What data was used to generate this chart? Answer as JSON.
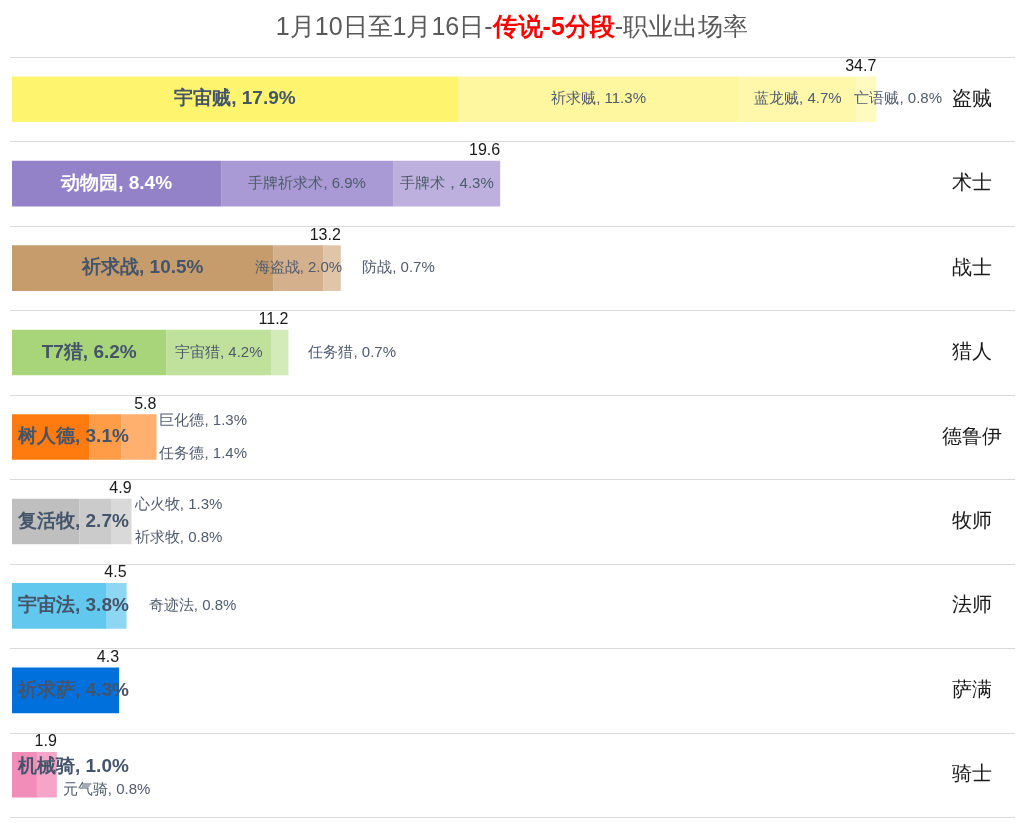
{
  "chart_data": {
    "type": "bar",
    "title": "1月10日至1月16日-传说-5分段-职业出场率",
    "orientation": "horizontal",
    "stacked": true,
    "grid": "y",
    "tick_labels": "y",
    "categories": [
      "盗贼",
      "术士",
      "战士",
      "猎人",
      "德鲁伊",
      "牧师",
      "法师",
      "萨满",
      "骑士"
    ],
    "totals": [
      "34.7",
      "19.6",
      "13.2",
      "11.2",
      "5.8",
      "4.9",
      "4.5",
      "4.3",
      "1.9"
    ],
    "series": [
      {
        "values": [
          17.9,
          8.4,
          10.5,
          6.2,
          3.1,
          2.7,
          3.8,
          4.3,
          1.0
        ],
        "colors": [
          "#fff46e",
          "#9382c8",
          "#c69c6d",
          "#a8d57a",
          "#ff7b0f",
          "#bfbfbf",
          "#63c8ee",
          "#0070dd",
          "#f28cb8"
        ],
        "value_labels": [
          "宇宙贼, 17.9%",
          "动物园, 8.4%",
          "祈求战, 10.5%",
          "T7猎, 6.2%",
          "树人德, 3.1%",
          "复活牧, 2.7%",
          "宇宙法, 3.8%",
          "祈求萨, 4.3%",
          "机械骑, 1.0%"
        ]
      },
      {
        "values": [
          11.3,
          6.9,
          2.0,
          4.2,
          1.3,
          1.3,
          0.8,
          null,
          0.8
        ],
        "colors": [
          "#fff7a0",
          "#a999d4",
          "#d4b08c",
          "#c0e19c",
          "#ff9c48",
          "#cbcbcb",
          "#8dd7f3",
          null,
          "#f6a5c9"
        ],
        "value_labels": [
          "祈求贼, 11.3%",
          "手牌祈求术, 6.9%",
          "海盗战, 2.0%",
          "宇宙猎, 4.2%",
          "巨化德, 1.3%",
          "心火牧, 1.3%",
          "奇迹法, 0.8%",
          null,
          "元气骑, 0.8%"
        ]
      },
      {
        "values": [
          4.7,
          4.3,
          0.7,
          0.7,
          1.4,
          0.8,
          null,
          null,
          null
        ],
        "colors": [
          "#fff8ab",
          "#bdb0de",
          "#e0c5a8",
          "#d3ebb8",
          "#ffb06e",
          "#d9d9d9",
          null,
          null,
          null
        ],
        "value_labels": [
          "蓝龙贼, 4.7%",
          "手牌术，4.3%",
          "防战, 0.7%",
          "任务猎, 0.7%",
          "任务德, 1.4%",
          "祈求牧, 0.8%",
          null,
          null,
          null
        ]
      },
      {
        "values": [
          0.8,
          null,
          null,
          null,
          null,
          null,
          null,
          null,
          null
        ],
        "colors": [
          "#fffabd",
          null,
          null,
          null,
          null,
          null,
          null,
          null,
          null
        ],
        "value_labels": [
          "亡语贼, 0.8%",
          null,
          null,
          null,
          null,
          null,
          null,
          null,
          null
        ]
      }
    ]
  }
}
